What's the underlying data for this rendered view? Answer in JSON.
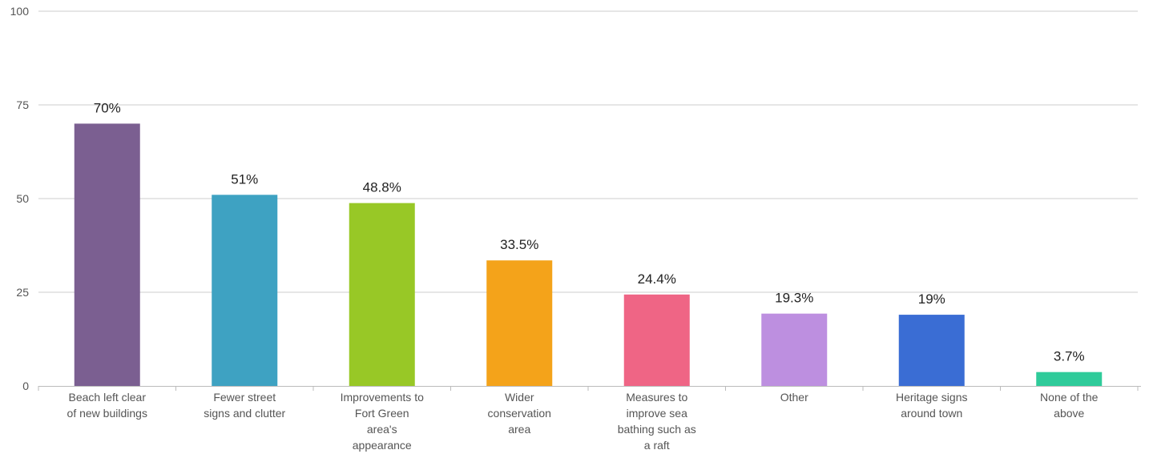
{
  "chart_data": {
    "type": "bar",
    "title": "",
    "xlabel": "",
    "ylabel": "",
    "ylim": [
      0,
      100
    ],
    "yticks": [
      0,
      25,
      50,
      75,
      100
    ],
    "grid": true,
    "legend": "none",
    "categories": [
      [
        "Beach left clear",
        "of new buildings"
      ],
      [
        "Fewer street",
        "signs and clutter"
      ],
      [
        "Improvements to",
        "Fort Green",
        "area's",
        "appearance"
      ],
      [
        "Wider",
        "conservation",
        "area"
      ],
      [
        "Measures to",
        "improve sea",
        "bathing such as",
        "a raft"
      ],
      [
        "Other"
      ],
      [
        "Heritage signs",
        "around town"
      ],
      [
        "None of the",
        "above"
      ]
    ],
    "values": [
      70,
      51,
      48.8,
      33.5,
      24.4,
      19.3,
      19,
      3.7
    ],
    "value_labels": [
      "70%",
      "51%",
      "48.8%",
      "33.5%",
      "24.4%",
      "19.3%",
      "19%",
      "3.7%"
    ],
    "colors": [
      "#7b5f91",
      "#3ea2c2",
      "#98c826",
      "#f4a31a",
      "#ef6585",
      "#bd8fe0",
      "#3a6dd4",
      "#2fcb9a"
    ]
  }
}
